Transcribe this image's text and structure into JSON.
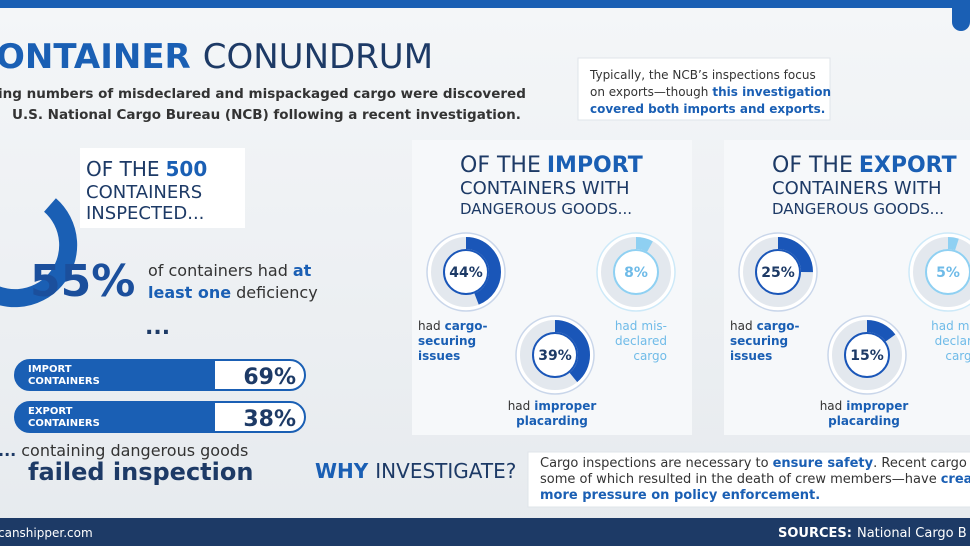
{
  "header": {
    "title_bold": "ONTAINER",
    "title_rest": "CONUNDRUM",
    "subtitle": [
      "ing numbers of misdeclared and mispackaged cargo were discovered",
      "U.S. National Cargo Bureau (NCB) following a recent investigation."
    ]
  },
  "note": {
    "line_1": "Typically, the NCB’s inspections focus",
    "line_2": "on exports—though",
    "highlight": [
      "this investigation",
      "covered both imports and exports."
    ]
  },
  "overview": {
    "heading": {
      "prefix": "OF THE",
      "number": "500",
      "line_2": "CONTAINERS",
      "line_3": "INSPECTED..."
    },
    "headline": "55%",
    "text": {
      "part_1": "of containers had",
      "emph_1": "at",
      "emph_2": "least one",
      "part_2": "deficiency"
    },
    "ellipsis": "...",
    "bars": [
      {
        "label": [
          "IMPORT",
          "CONTAINERS"
        ],
        "value": "69%"
      },
      {
        "label": [
          "EXPORT",
          "CONTAINERS"
        ],
        "value": "38%"
      }
    ],
    "result": {
      "lead": "...",
      "text": "containing dangerous goods",
      "emph": "failed inspection"
    }
  },
  "panels": [
    {
      "heading": {
        "prefix": "OF THE",
        "emph": "IMPORT",
        "line_2": "CONTAINERS WITH",
        "line_3": "DANGEROUS GOODS..."
      },
      "donuts": [
        {
          "value": 44,
          "label": "44%",
          "color": "#1a56b8",
          "caption": {
            "plain": "had",
            "lines": [
              "cargo-",
              "securing",
              "issues"
            ]
          }
        },
        {
          "value": 8,
          "label": "8%",
          "color": "#8fd0f2",
          "caption": {
            "plain": "had",
            "lines": [
              "mis-",
              "declared",
              "cargo"
            ]
          }
        },
        {
          "value": 39,
          "label": "39%",
          "color": "#1a56b8",
          "caption": {
            "plain": "had",
            "lines": [
              "improper",
              "placarding"
            ]
          }
        }
      ]
    },
    {
      "heading": {
        "prefix": "OF THE",
        "emph": "EXPORT",
        "line_2": "CONTAINERS WITH",
        "line_3": "DANGEROUS GOODS..."
      },
      "donuts": [
        {
          "value": 25,
          "label": "25%",
          "color": "#1a56b8",
          "caption": {
            "plain": "had",
            "lines": [
              "cargo-",
              "securing",
              "issues"
            ]
          }
        },
        {
          "value": 5,
          "label": "5%",
          "color": "#8fd0f2",
          "caption": {
            "plain": "had",
            "lines": [
              "mis",
              "declare",
              "cargo"
            ]
          }
        },
        {
          "value": 15,
          "label": "15%",
          "color": "#1a56b8",
          "caption": {
            "plain": "had",
            "lines": [
              "improper",
              "placarding"
            ]
          }
        }
      ]
    }
  ],
  "why": {
    "title_bold": "WHY",
    "title_rest": "INVESTIGATE?",
    "line_1": [
      "Cargo inspections are necessary to",
      "ensure safety",
      ". Recent cargo fir"
    ],
    "line_2": [
      "some of which resulted in the death of crew members—have",
      "creat"
    ],
    "line_3": "more pressure on policy enforcement."
  },
  "footer": {
    "site": "canshipper.com",
    "sources_label": "SOURCES:",
    "sources": "National Cargo B"
  }
}
